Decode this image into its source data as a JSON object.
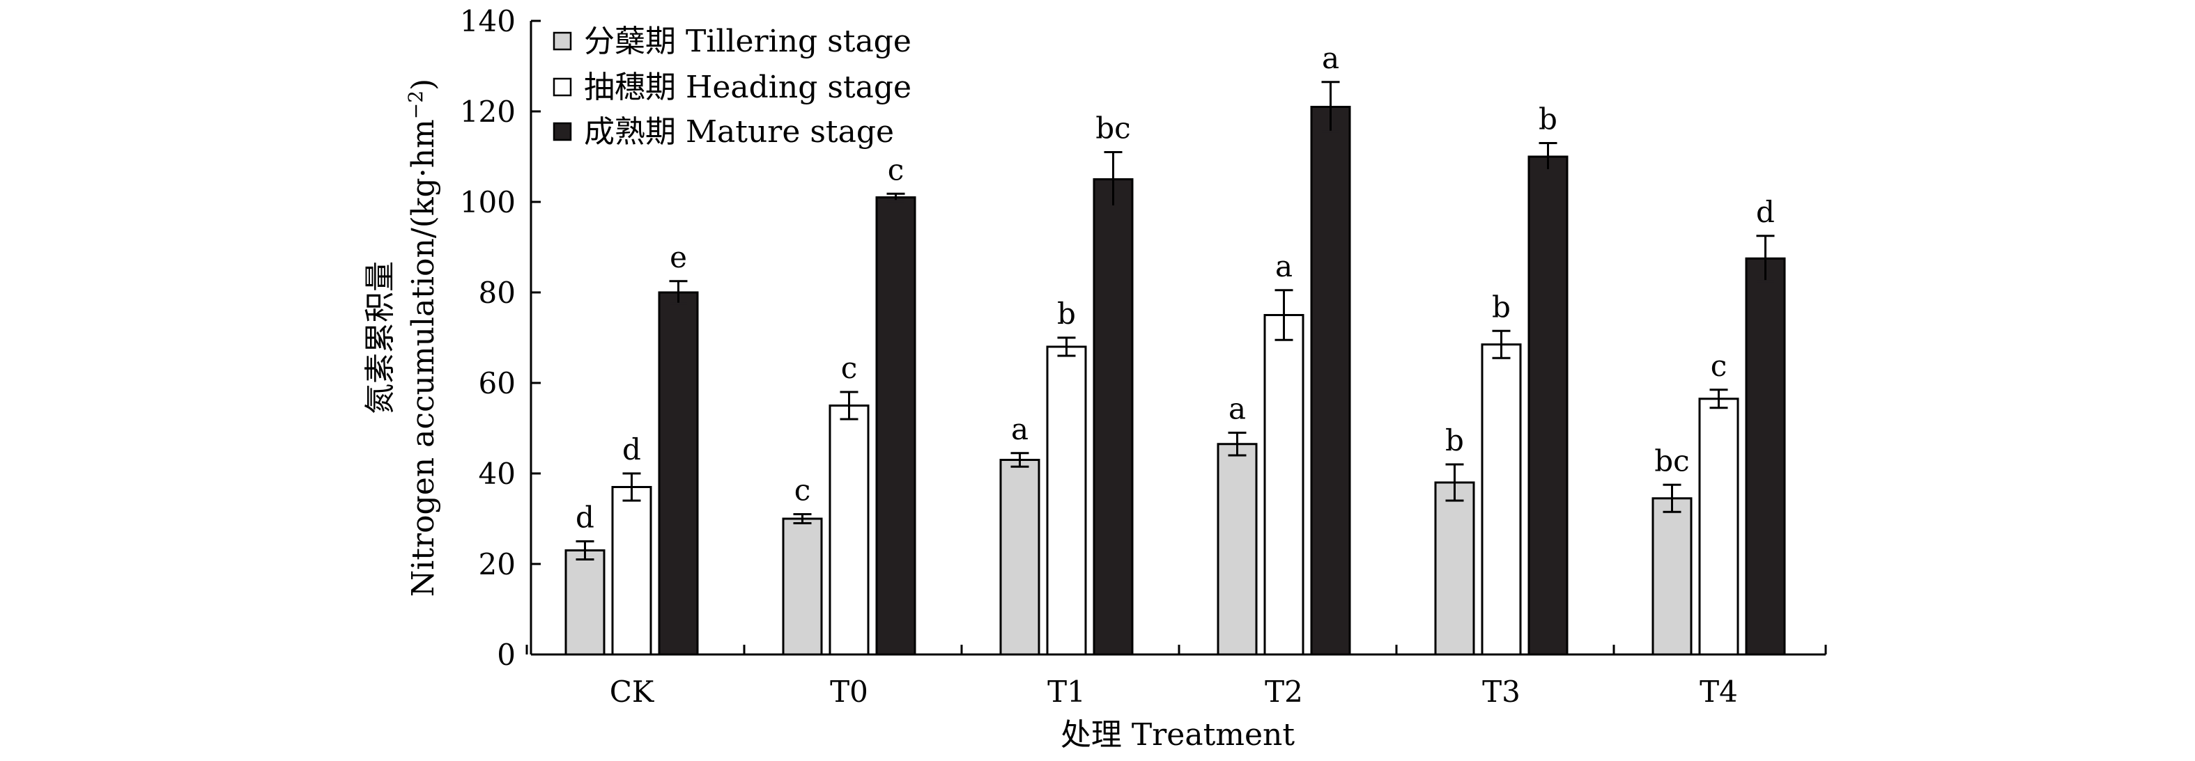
{
  "chart_data": {
    "type": "bar",
    "categories": [
      "CK",
      "T0",
      "T1",
      "T2",
      "T3",
      "T4"
    ],
    "series": [
      {
        "name": "分蘖期 Tillering stage",
        "color": "#d3d3d3",
        "values": [
          23,
          30,
          43,
          46.5,
          38,
          34.5
        ],
        "errors": [
          2,
          1,
          1.5,
          2.5,
          4,
          3
        ],
        "labels": [
          "d",
          "c",
          "a",
          "a",
          "b",
          "bc"
        ]
      },
      {
        "name": "抽穗期 Heading stage",
        "color": "#ffffff",
        "values": [
          37,
          55,
          68,
          75,
          68.5,
          56.5
        ],
        "errors": [
          3,
          3,
          2,
          5.5,
          3,
          2
        ],
        "labels": [
          "d",
          "c",
          "b",
          "a",
          "b",
          "c"
        ]
      },
      {
        "name": "成熟期 Mature stage",
        "color": "#231f20",
        "values": [
          80,
          101,
          105,
          121,
          110,
          87.5
        ],
        "errors": [
          2.5,
          0.8,
          6,
          5.5,
          3,
          5
        ],
        "labels": [
          "e",
          "c",
          "bc",
          "a",
          "b",
          "d"
        ]
      }
    ],
    "xlabel": "处理 Treatment",
    "ylabel_cn": "氮素累积量",
    "ylabel_en": "Nitrogen accumulation/(kg·hm",
    "ylabel_sup": "−2",
    "ylabel_close": ")",
    "ylim": [
      0,
      140
    ],
    "yticks": [
      0,
      20,
      40,
      60,
      80,
      100,
      120,
      140
    ],
    "grid": false,
    "legend_position": "top-left"
  }
}
